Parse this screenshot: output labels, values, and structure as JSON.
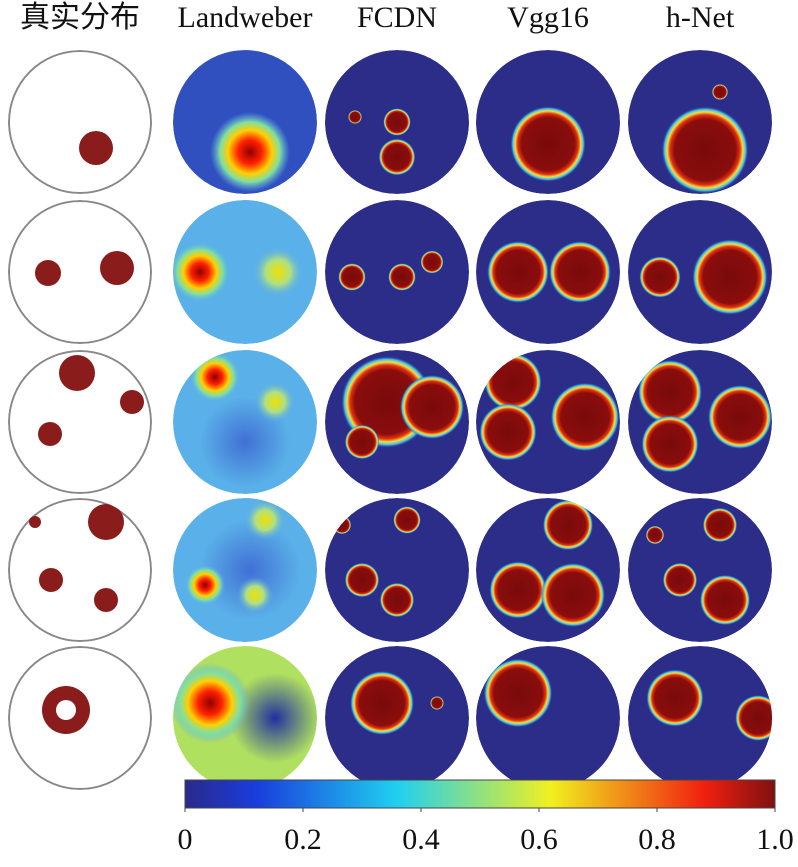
{
  "headers": [
    "真实分布",
    "Landweber",
    "FCDN",
    "Vgg16",
    "h-Net"
  ],
  "colorbar": {
    "lim": [
      0,
      1
    ],
    "ticks": [
      0,
      0.2,
      0.4,
      0.6,
      0.8,
      {
        "value": 1,
        "label": "1.0"
      }
    ]
  }
}
